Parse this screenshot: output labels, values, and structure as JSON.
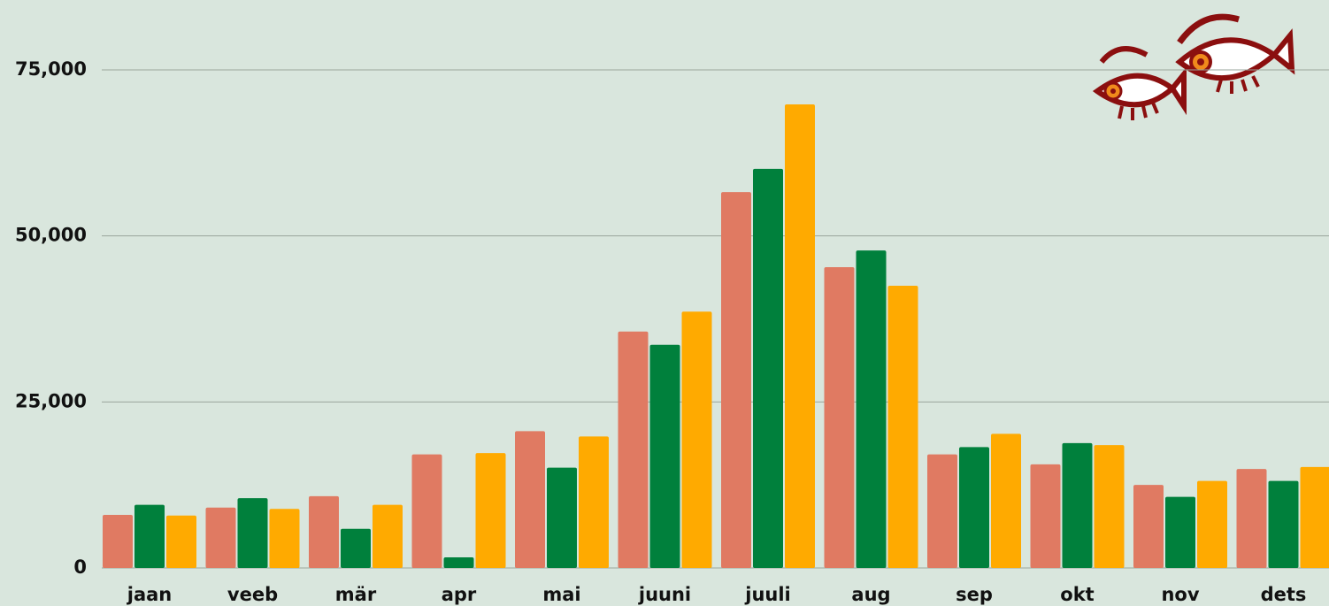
{
  "chart_data": {
    "type": "bar",
    "categories": [
      "jaan",
      "veeb",
      "mär",
      "apr",
      "mai",
      "juuni",
      "juuli",
      "aug",
      "sep",
      "okt",
      "nov",
      "dets"
    ],
    "series": [
      {
        "color": "#e07a62",
        "values": [
          8000,
          9100,
          10800,
          17100,
          20600,
          35600,
          56600,
          45300,
          17100,
          15600,
          12500,
          14900
        ]
      },
      {
        "color": "#00803c",
        "values": [
          9500,
          10500,
          5900,
          1600,
          15100,
          33600,
          60100,
          47800,
          18200,
          18800,
          10700,
          13100
        ]
      },
      {
        "color": "#ffaa00",
        "values": [
          7900,
          8900,
          9500,
          17300,
          19800,
          38600,
          69800,
          42500,
          20200,
          18500,
          13100,
          15200
        ]
      }
    ],
    "ylim": [
      0,
      75000
    ],
    "yticks": [
      0,
      {
        "value": 25000,
        "label": "25,000"
      },
      {
        "value": 50000,
        "label": "50,000"
      },
      {
        "value": 75000,
        "label": "75,000"
      }
    ],
    "grid": true
  }
}
